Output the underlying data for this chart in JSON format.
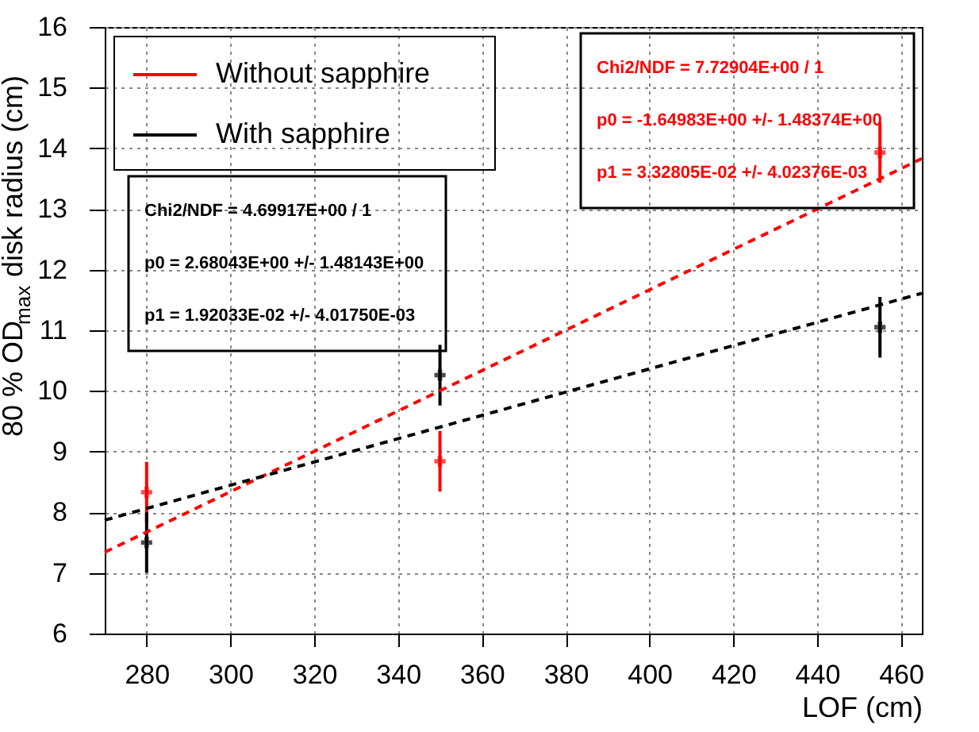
{
  "chart_data": {
    "type": "scatter",
    "xlabel": "LOF (cm)",
    "ylabel": "80 % OD$_{max}$ disk radius (cm)",
    "xlim": [
      270,
      465
    ],
    "xticks": [
      280,
      300,
      320,
      340,
      360,
      380,
      400,
      420,
      440,
      460
    ],
    "ylim": [
      6,
      16
    ],
    "yticks": [
      6,
      7,
      8,
      9,
      10,
      11,
      12,
      13,
      14,
      15,
      16
    ],
    "grid": true,
    "legend": "top left",
    "marker": "cross",
    "series": [
      {
        "name": "Without sapphire",
        "color": "#ff0000",
        "x": [
          280,
          350,
          455
        ],
        "values": [
          8.33,
          8.84,
          13.93
        ],
        "errors": [
          0.5,
          0.5,
          0.5
        ]
      },
      {
        "name": "With sapphire",
        "color": "#000000",
        "x": [
          280,
          350,
          455
        ],
        "values": [
          7.5,
          10.26,
          11.05
        ],
        "errors": [
          0.5,
          0.5,
          0.5
        ]
      },
      {
        "type": "line",
        "color": "#ff0000",
        "line_style": "dashed",
        "marker": "none",
        "x": [
          270,
          465
        ],
        "values": [
          7.34,
          13.83
        ]
      },
      {
        "type": "line",
        "color": "#000000",
        "line_style": "dashed",
        "marker": "none",
        "x": [
          270,
          465
        ],
        "values": [
          7.87,
          11.61
        ]
      }
    ],
    "annotations": [
      "Chi2/NDF = 7.72904E+00 / 1",
      "p0 = -1.64983E+00 +/- 1.48374E+00",
      "p1 = 3.32805E-02 +/- 4.02376E-03",
      "Chi2/NDF = 4.69917E+00 / 1",
      "p0 = 2.68043E+00 +/- 1.48143E+00",
      "p1 = 1.92033E-02 +/- 4.01750E-03"
    ]
  }
}
